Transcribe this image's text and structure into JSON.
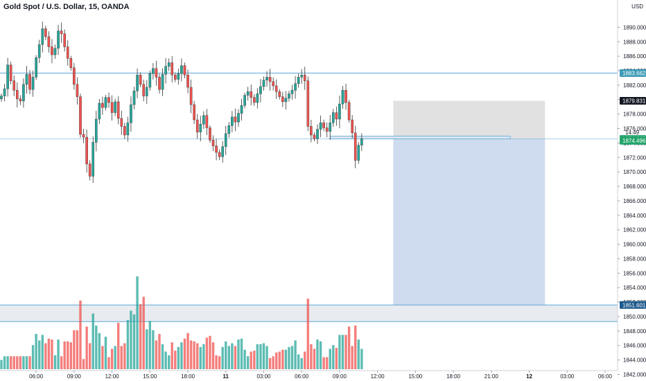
{
  "header": {
    "title": "Gold Spot / U.S. Dollar, 15, OANDA",
    "currency": "USD"
  },
  "chart_data": {
    "type": "candlestick",
    "ylim": [
      1841.3,
      1893.5
    ],
    "yticks": [
      1842,
      1844,
      1846,
      1848,
      1850,
      1852,
      1854,
      1856,
      1858,
      1860,
      1862,
      1864,
      1866,
      1868,
      1870,
      1872,
      1874,
      1876,
      1878,
      1880,
      1882,
      1884,
      1886,
      1888,
      1890
    ],
    "ytick_labels": [
      "1842.000",
      "1844.000",
      "1846.000",
      "1848.000",
      "1850.000",
      "1852.000",
      "1854.000",
      "1856.000",
      "1858.000",
      "1860.000",
      "1862.000",
      "1864.000",
      "1866.000",
      "1868.000",
      "1870.000",
      "1872.000",
      "1874.000",
      "1876.000",
      "1878.000",
      "1880.000",
      "1882.000",
      "1884.000",
      "1886.000",
      "1888.000",
      "1890.000"
    ],
    "xticks": [
      {
        "label": "06:00",
        "bar": 11
      },
      {
        "label": "09:00",
        "bar": 23
      },
      {
        "label": "12:00",
        "bar": 35
      },
      {
        "label": "15:00",
        "bar": 47
      },
      {
        "label": "18:00",
        "bar": 59
      },
      {
        "label": "11",
        "bar": 71,
        "bold": true
      },
      {
        "label": "03:00",
        "bar": 83
      },
      {
        "label": "06:00",
        "bar": 95
      },
      {
        "label": "09:00",
        "bar": 107
      },
      {
        "label": "12:00",
        "bar": 119
      },
      {
        "label": "15:00",
        "bar": 131
      },
      {
        "label": "18:00",
        "bar": 143
      },
      {
        "label": "21:00",
        "bar": 155
      },
      {
        "label": "12",
        "bar": 167,
        "bold": true
      },
      {
        "label": "03:00",
        "bar": 179
      },
      {
        "label": "06:00",
        "bar": 191
      }
    ],
    "closes": [
      1880.5,
      1881.5,
      1884.8,
      1882.6,
      1881.3,
      1880.1,
      1879.8,
      1882.1,
      1883.5,
      1881.4,
      1883.1,
      1885.8,
      1887.6,
      1889.8,
      1888.7,
      1887.3,
      1886.2,
      1887.1,
      1889.5,
      1889.1,
      1887.3,
      1885.7,
      1884.4,
      1882.1,
      1880.4,
      1875.2,
      1874.8,
      1871.1,
      1869.4,
      1874.1,
      1877.3,
      1879.5,
      1878.9,
      1880.3,
      1879.6,
      1878.2,
      1879.7,
      1877.4,
      1876.3,
      1875.1,
      1876.8,
      1879.3,
      1881.2,
      1883.4,
      1882.1,
      1880.5,
      1881.7,
      1883.6,
      1884.3,
      1883.1,
      1881.4,
      1883.5,
      1884.6,
      1885.1,
      1883.4,
      1882.8,
      1883.6,
      1884.7,
      1883.4,
      1881.7,
      1879.3,
      1877.2,
      1875.5,
      1876.6,
      1877.8,
      1876.1,
      1874.4,
      1873.6,
      1872.7,
      1872.1,
      1873.5,
      1875.3,
      1876.4,
      1877.6,
      1876.9,
      1878.1,
      1879.2,
      1880.6,
      1881.1,
      1880.3,
      1879.6,
      1880.8,
      1881.8,
      1882.7,
      1883.1,
      1882.5,
      1881.9,
      1881.1,
      1880.4,
      1879.7,
      1880.2,
      1880.8,
      1881.3,
      1882.2,
      1883.1,
      1883.4,
      1882.6,
      1876.3,
      1875.1,
      1874.6,
      1875.9,
      1876.8,
      1876.1,
      1875.6,
      1876.8,
      1878.2,
      1877.3,
      1879.4,
      1881.3,
      1879.6,
      1877.2,
      1875.4,
      1871.6,
      1873.7,
      1874.6
    ]
  },
  "levels": [
    {
      "price": 1883.662,
      "label": "1883.662"
    },
    {
      "price": 1874.557,
      "label": "1874.557"
    },
    {
      "price": 1851.601,
      "label": "1851.601"
    }
  ],
  "markers": {
    "current": {
      "price": 1874.496,
      "label": "1874.496",
      "countdown": "14:49"
    },
    "target": {
      "price": 1879.831,
      "label": "1879.831"
    }
  },
  "position": {
    "entry": 1874.557,
    "stop": 1879.831,
    "target": 1851.601
  },
  "support_zone": {
    "top": 1851.601,
    "bottom": 1849.3
  },
  "colors": {
    "up": "#26a69a",
    "down": "#ef5350",
    "level": "#5ba8d4",
    "label_bg": "#3d9bb6",
    "current": "#22a46b",
    "dark_label": "#131722",
    "target_label": "#1e5a8c",
    "stop_zone": "#dcdcdc",
    "target_zone": "#c7d6ec",
    "support_zone": "#e8ebef"
  }
}
